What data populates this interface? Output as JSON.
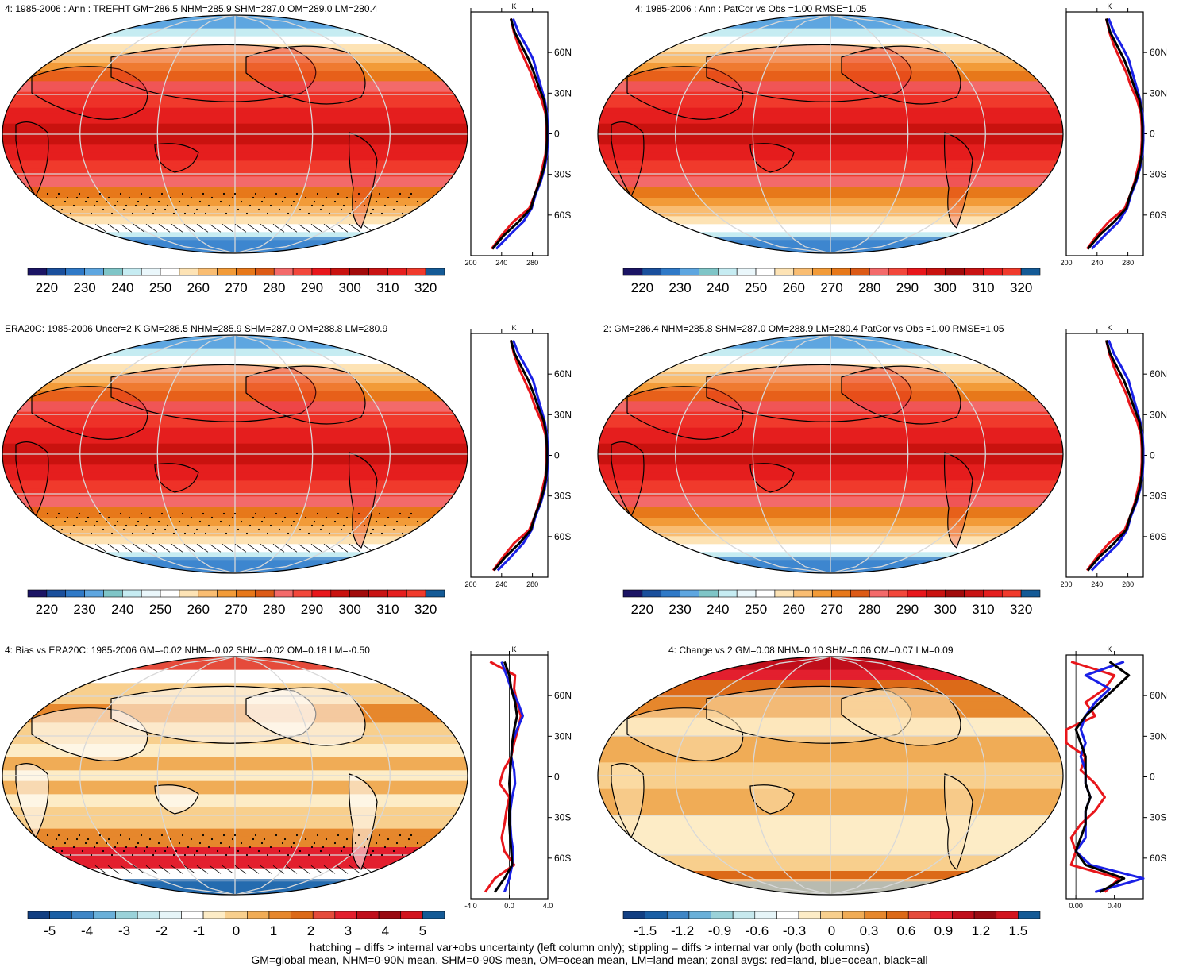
{
  "colors": {
    "land_line": "#e8161b",
    "ocean_line": "#1a20e6",
    "all_line": "#000000",
    "abs_scale": [
      "#1b1464",
      "#1a4f9c",
      "#2f79c7",
      "#5ea6e0",
      "#7fc5c7",
      "#c6ecf2",
      "#eaf7fb",
      "#ffffff",
      "#fde3b5",
      "#f9bd72",
      "#f29b38",
      "#e7781a",
      "#dc5a16",
      "#f36a6a",
      "#f2473b",
      "#e8161b",
      "#c9120f",
      "#a10a0a",
      "#c81313",
      "#e51e1e",
      "#f03a2c",
      "#145a96"
    ],
    "diff_scale": [
      "#123f82",
      "#1a5fa5",
      "#3f86c6",
      "#6ab0d9",
      "#9ad2d9",
      "#c7e9ee",
      "#e6f5f8",
      "#ffffff",
      "#fdecc6",
      "#f8cf8d",
      "#f0ac56",
      "#e6872c",
      "#dc6a18",
      "#e54b3b",
      "#e31f2e",
      "#c00e1b",
      "#9a0a12",
      "#d2141e",
      "#145a96"
    ]
  },
  "panels": [
    {
      "title": "4: 1985-2006 : Ann : TREFHT GM=286.5 NHM=285.9 SHM=287.0 OM=289.0 LM=280.4",
      "kind": "abs",
      "zonal_unit": "K",
      "lat_labels": [
        "60N",
        "30N",
        "0",
        "30S",
        "60S"
      ],
      "zonal_ticks": [
        "200",
        "240",
        "280"
      ],
      "colorbar_labels": [
        "220",
        "230",
        "240",
        "250",
        "260",
        "270",
        "280",
        "290",
        "300",
        "310",
        "320"
      ],
      "hatched": true,
      "stippled": true
    },
    {
      "title": "4: 1985-2006 : Ann : PatCor vs Obs =1.00 RMSE=1.05",
      "kind": "abs",
      "zonal_unit": "K",
      "lat_labels": [
        "60N",
        "30N",
        "0",
        "30S",
        "60S"
      ],
      "zonal_ticks": [
        "200",
        "240",
        "280"
      ],
      "colorbar_labels": [
        "220",
        "230",
        "240",
        "250",
        "260",
        "270",
        "280",
        "290",
        "300",
        "310",
        "320"
      ],
      "hatched": false,
      "stippled": false
    },
    {
      "title": "ERA20C: 1985-2006 Uncer=2 K GM=286.5 NHM=285.9 SHM=287.0 OM=288.8 LM=280.9",
      "kind": "abs",
      "zonal_unit": "K",
      "lat_labels": [
        "60N",
        "30N",
        "0",
        "30S",
        "60S"
      ],
      "zonal_ticks": [
        "200",
        "240",
        "280"
      ],
      "colorbar_labels": [
        "220",
        "230",
        "240",
        "250",
        "260",
        "270",
        "280",
        "290",
        "300",
        "310",
        "320"
      ],
      "hatched": true,
      "stippled": true
    },
    {
      "title": "2: GM=286.4 NHM=285.8 SHM=287.0 OM=288.9 LM=280.4 PatCor vs Obs =1.00 RMSE=1.05",
      "kind": "abs",
      "zonal_unit": "K",
      "lat_labels": [
        "60N",
        "30N",
        "0",
        "30S",
        "60S"
      ],
      "zonal_ticks": [
        "200",
        "240",
        "280"
      ],
      "colorbar_labels": [
        "220",
        "230",
        "240",
        "250",
        "260",
        "270",
        "280",
        "290",
        "300",
        "310",
        "320"
      ],
      "hatched": false,
      "stippled": false
    },
    {
      "title": "4: Bias vs ERA20C: 1985-2006 GM=-0.02 NHM=-0.02 SHM=-0.02 OM=0.18 LM=-0.50",
      "kind": "bias",
      "zonal_unit": "K",
      "lat_labels": [
        "60N",
        "30N",
        "0",
        "30S",
        "60S"
      ],
      "zonal_ticks": [
        "-4.0",
        "0.0",
        "4.0"
      ],
      "colorbar_labels": [
        "-5",
        "-4",
        "-3",
        "-2",
        "-1",
        "0",
        "1",
        "2",
        "3",
        "4",
        "5"
      ],
      "hatched": true,
      "stippled": true
    },
    {
      "title": "4: Change vs 2 GM=0.08 NHM=0.10 SHM=0.06 OM=0.07 LM=0.09",
      "kind": "change",
      "zonal_unit": "K",
      "lat_labels": [
        "60N",
        "30N",
        "0",
        "30S",
        "60S"
      ],
      "zonal_ticks": [
        "0.00",
        "0.40"
      ],
      "colorbar_labels": [
        "-1.5",
        "-1.2",
        "-0.9",
        "-0.6",
        "-0.3",
        "0",
        "0.3",
        "0.6",
        "0.9",
        "1.2",
        "1.5"
      ],
      "hatched": false,
      "stippled": false
    }
  ],
  "chart_data": [
    {
      "type": "heatmap",
      "title": "4: 1985-2006 : Ann : TREFHT GM=286.5 NHM=285.9 SHM=287.0 OM=289.0 LM=280.4",
      "x": "longitude",
      "y": "latitude",
      "colorbar": [
        220,
        230,
        240,
        250,
        260,
        270,
        280,
        290,
        300,
        310,
        320
      ],
      "zonal_mean": {
        "lat": [
          -85,
          -75,
          -65,
          -55,
          -45,
          -35,
          -25,
          -15,
          -5,
          5,
          15,
          25,
          35,
          45,
          55,
          65,
          75,
          85
        ],
        "all": [
          228,
          243,
          262,
          278,
          283,
          290,
          295,
          298,
          299,
          299,
          298,
          295,
          288,
          282,
          275,
          266,
          257,
          252
        ],
        "land": [
          227,
          240,
          255,
          276,
          283,
          289,
          293,
          297,
          298,
          298,
          297,
          292,
          284,
          278,
          270,
          262,
          256,
          252
        ],
        "ocean": [
          233,
          250,
          268,
          279,
          284,
          291,
          296,
          299,
          300,
          300,
          299,
          296,
          291,
          286,
          281,
          272,
          262,
          255
        ]
      },
      "zonal_xlim": [
        200,
        300
      ]
    },
    {
      "type": "heatmap",
      "title": "4: 1985-2006 : Ann : PatCor vs Obs =1.00 RMSE=1.05",
      "colorbar": [
        220,
        230,
        240,
        250,
        260,
        270,
        280,
        290,
        300,
        310,
        320
      ],
      "zonal_mean": {
        "lat": [
          -85,
          -75,
          -65,
          -55,
          -45,
          -35,
          -25,
          -15,
          -5,
          5,
          15,
          25,
          35,
          45,
          55,
          65,
          75,
          85
        ],
        "all": [
          228,
          243,
          262,
          278,
          283,
          290,
          295,
          298,
          299,
          299,
          298,
          295,
          288,
          282,
          275,
          266,
          257,
          252
        ],
        "land": [
          227,
          240,
          255,
          276,
          283,
          289,
          293,
          297,
          298,
          298,
          297,
          292,
          284,
          278,
          270,
          262,
          256,
          252
        ],
        "ocean": [
          233,
          250,
          268,
          279,
          284,
          291,
          296,
          299,
          300,
          300,
          299,
          296,
          291,
          286,
          281,
          272,
          262,
          255
        ]
      },
      "zonal_xlim": [
        200,
        300
      ]
    },
    {
      "type": "heatmap",
      "title": "ERA20C: 1985-2006 Uncer=2 K GM=286.5 NHM=285.9 SHM=287.0 OM=288.8 LM=280.9",
      "colorbar": [
        220,
        230,
        240,
        250,
        260,
        270,
        280,
        290,
        300,
        310,
        320
      ],
      "zonal_mean": {
        "lat": [
          -85,
          -75,
          -65,
          -55,
          -45,
          -35,
          -25,
          -15,
          -5,
          5,
          15,
          25,
          35,
          45,
          55,
          65,
          75,
          85
        ],
        "all": [
          230,
          245,
          263,
          278,
          283,
          290,
          295,
          298,
          299,
          299,
          298,
          295,
          288,
          282,
          275,
          266,
          257,
          252
        ],
        "land": [
          229,
          242,
          256,
          276,
          283,
          289,
          293,
          297,
          298,
          298,
          297,
          292,
          284,
          278,
          270,
          262,
          256,
          252
        ],
        "ocean": [
          235,
          252,
          268,
          279,
          284,
          291,
          296,
          299,
          300,
          300,
          299,
          296,
          291,
          286,
          281,
          272,
          262,
          255
        ]
      },
      "zonal_xlim": [
        200,
        300
      ]
    },
    {
      "type": "heatmap",
      "title": "2: GM=286.4 NHM=285.8 SHM=287.0 OM=288.9 LM=280.4 PatCor vs Obs =1.00 RMSE=1.05",
      "colorbar": [
        220,
        230,
        240,
        250,
        260,
        270,
        280,
        290,
        300,
        310,
        320
      ],
      "zonal_mean": {
        "lat": [
          -85,
          -75,
          -65,
          -55,
          -45,
          -35,
          -25,
          -15,
          -5,
          5,
          15,
          25,
          35,
          45,
          55,
          65,
          75,
          85
        ],
        "all": [
          228,
          243,
          262,
          278,
          283,
          290,
          295,
          298,
          299,
          299,
          298,
          295,
          288,
          282,
          275,
          266,
          257,
          252
        ],
        "land": [
          227,
          240,
          255,
          276,
          283,
          289,
          293,
          297,
          298,
          298,
          297,
          292,
          284,
          278,
          270,
          262,
          256,
          252
        ],
        "ocean": [
          233,
          250,
          268,
          279,
          284,
          291,
          296,
          299,
          300,
          300,
          299,
          296,
          291,
          286,
          281,
          272,
          262,
          255
        ]
      },
      "zonal_xlim": [
        200,
        300
      ]
    },
    {
      "type": "heatmap",
      "title": "4: Bias vs ERA20C: 1985-2006 GM=-0.02 NHM=-0.02 SHM=-0.02 OM=0.18 LM=-0.50",
      "colorbar": [
        -5,
        -4,
        -3,
        -2,
        -1,
        0,
        1,
        2,
        3,
        4,
        5
      ],
      "zonal_mean": {
        "lat": [
          -85,
          -75,
          -65,
          -55,
          -45,
          -35,
          -25,
          -15,
          -5,
          5,
          15,
          25,
          35,
          45,
          55,
          65,
          75,
          85
        ],
        "all": [
          -1.5,
          -0.5,
          0.3,
          0.2,
          0.1,
          0.0,
          0.0,
          0.1,
          0.0,
          0.1,
          0.2,
          0.3,
          0.5,
          0.8,
          0.6,
          0.2,
          0.0,
          -0.5
        ],
        "land": [
          -2.5,
          -1.5,
          0.5,
          -0.5,
          -0.8,
          -0.5,
          -0.3,
          0.0,
          -1.0,
          -0.6,
          0.2,
          0.5,
          0.9,
          1.2,
          0.8,
          0.5,
          0.6,
          -2.0
        ],
        "ocean": [
          -0.5,
          0.0,
          0.3,
          0.4,
          0.2,
          0.1,
          0.1,
          0.3,
          0.6,
          0.5,
          0.2,
          0.3,
          0.8,
          1.4,
          0.9,
          0.2,
          -0.3,
          -0.8
        ]
      },
      "zonal_xlim": [
        -4,
        4
      ]
    },
    {
      "type": "heatmap",
      "title": "4: Change vs 2 GM=0.08 NHM=0.10 SHM=0.06 OM=0.07 LM=0.09",
      "colorbar": [
        -1.5,
        -1.2,
        -0.9,
        -0.6,
        -0.3,
        0,
        0.3,
        0.6,
        0.9,
        1.2,
        1.5
      ],
      "zonal_mean": {
        "lat": [
          -85,
          -75,
          -65,
          -55,
          -45,
          -35,
          -25,
          -15,
          -5,
          5,
          15,
          25,
          35,
          45,
          55,
          65,
          75,
          85
        ],
        "all": [
          0.25,
          0.5,
          0.1,
          0.0,
          0.05,
          0.1,
          0.1,
          0.15,
          0.1,
          0.1,
          0.1,
          0.05,
          0.0,
          0.1,
          0.25,
          0.4,
          0.55,
          0.35
        ],
        "land": [
          0.3,
          0.45,
          -0.05,
          0.0,
          -0.05,
          0.05,
          0.2,
          0.3,
          0.2,
          0.05,
          0.1,
          -0.1,
          -0.1,
          0.2,
          0.1,
          0.3,
          0.4,
          -0.05
        ],
        "ocean": [
          0.2,
          0.7,
          0.15,
          0.0,
          0.1,
          0.1,
          0.1,
          0.15,
          0.1,
          0.1,
          0.05,
          0.1,
          0.05,
          0.1,
          0.2,
          0.35,
          0.1,
          0.5
        ]
      },
      "zonal_xlim": [
        -0.1,
        0.7
      ]
    }
  ],
  "footer": {
    "line1": "hatching = diffs > internal var+obs uncertainty (left column only); stippling = diffs > internal var only (both columns)",
    "line2": "GM=global mean, NHM=0-90N mean, SHM=0-90S mean, OM=ocean mean, LM=land mean; zonal avgs: red=land, blue=ocean, black=all"
  }
}
